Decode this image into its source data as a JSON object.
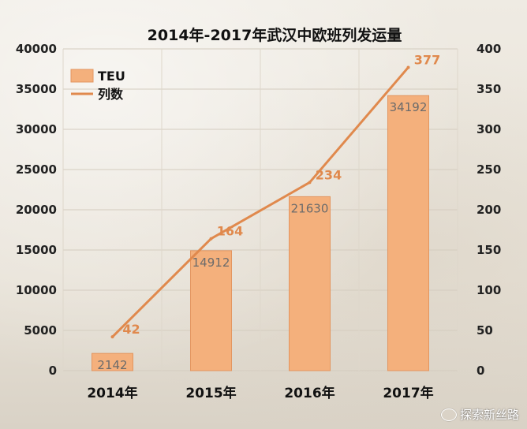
{
  "chart_data": {
    "type": "bar",
    "title": "2014年-2017年武汉中欧班列发运量",
    "categories": [
      "2014年",
      "2015年",
      "2016年",
      "2017年"
    ],
    "ylim_left": [
      0,
      40000
    ],
    "yticks_left": [
      0,
      5000,
      10000,
      15000,
      20000,
      25000,
      30000,
      35000,
      40000
    ],
    "ylim_right": [
      0,
      400
    ],
    "yticks_right": [
      0,
      50,
      100,
      150,
      200,
      250,
      300,
      350,
      400
    ],
    "legend_position": "top-left",
    "grid": true,
    "series": [
      {
        "name": "TEU",
        "type": "bar",
        "axis": "left",
        "values": [
          2142,
          14912,
          21630,
          34192
        ],
        "color": "#f4b07c"
      },
      {
        "name": "列数",
        "type": "line",
        "axis": "right",
        "values": [
          42,
          164,
          234,
          377
        ],
        "color": "#e0894d"
      }
    ]
  },
  "watermark": {
    "text": "探索新丝路",
    "icon": "wechat-icon"
  }
}
